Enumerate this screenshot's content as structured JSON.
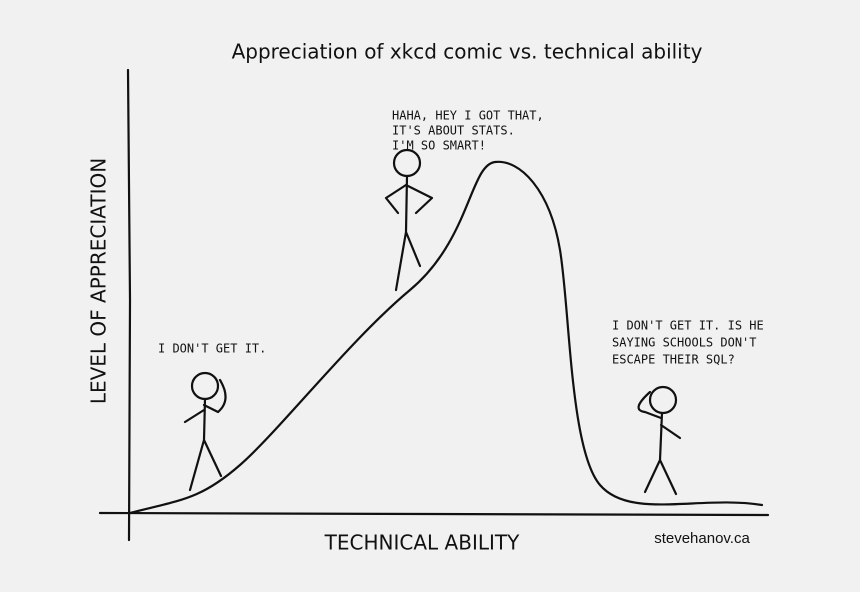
{
  "title": "Appreciation of xkcd comic vs. technical ability",
  "y_label": "LEVEL OF APPRECIATION",
  "x_label": "TECHNICAL ABILITY",
  "credit": "stevehanov.ca",
  "annotations": [
    {
      "lines": [
        "I DON'T GET IT."
      ]
    },
    {
      "lines": [
        "HAHA, HEY I GOT THAT,",
        "IT'S ABOUT STATS.",
        "I'M SO SMART!"
      ]
    },
    {
      "lines": [
        "I DON'T GET IT. IS HE",
        "SAYING SCHOOLS DON'T",
        "ESCAPE THEIR SQL?"
      ]
    }
  ]
}
